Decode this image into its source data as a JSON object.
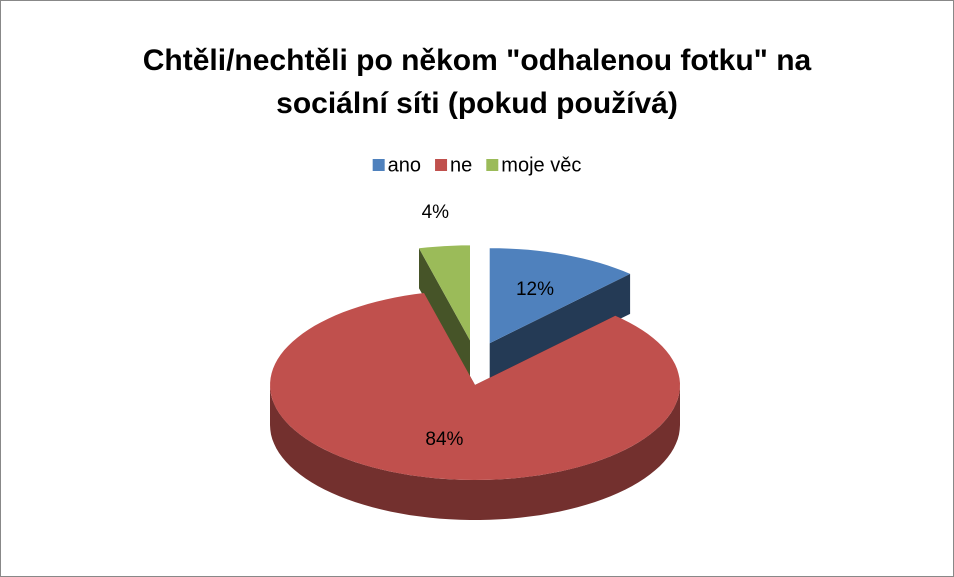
{
  "chart_data": {
    "type": "pie",
    "title": "Chtěli/nechtěli po někom \"odhalenou fotku\" na sociální síti (pokud používá)",
    "categories": [
      "ano",
      "ne",
      "moje věc"
    ],
    "values": [
      12,
      84,
      4
    ],
    "value_labels": [
      "12%",
      "84%",
      "4%"
    ],
    "colors": [
      "#4f81bd",
      "#c0504d",
      "#9bbb59"
    ],
    "legend": "top"
  }
}
